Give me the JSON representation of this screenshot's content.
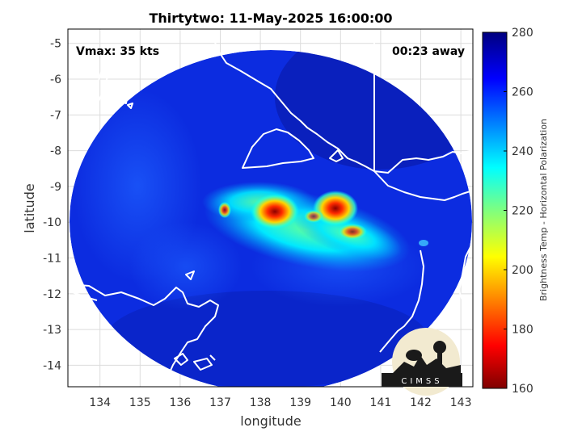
{
  "chart_data": {
    "type": "heatmap",
    "title": "Thirtytwo: 11-May-2025 16:00:00",
    "xlabel": "longitude",
    "ylabel": "latitude",
    "xlim": [
      133.2,
      143.3
    ],
    "ylim": [
      -14.6,
      -4.6
    ],
    "x_ticks": [
      134,
      135,
      136,
      137,
      138,
      139,
      140,
      141,
      142,
      143
    ],
    "y_ticks": [
      -5,
      -6,
      -7,
      -8,
      -9,
      -10,
      -11,
      -12,
      -13,
      -14
    ],
    "x_tick_labels": [
      "134",
      "135",
      "136",
      "137",
      "138",
      "139",
      "140",
      "141",
      "142",
      "143"
    ],
    "y_tick_labels": [
      "-5",
      "-6",
      "-7",
      "-8",
      "-9",
      "-10",
      "-11",
      "-12",
      "-13",
      "-14"
    ],
    "grid": true,
    "colorbar": {
      "label": "Brightness Temp - Horizontal Polarization",
      "range": [
        160,
        280
      ],
      "ticks": [
        280,
        260,
        240,
        220,
        200,
        180,
        160
      ],
      "tick_labels": [
        "280",
        "260",
        "240",
        "220",
        "200",
        "180",
        "160"
      ],
      "colormap": "jet"
    },
    "annotations": {
      "vmax": "Vmax: 35 kts",
      "time_offset": "00:23 away"
    },
    "swath": {
      "center_lon": 138.3,
      "center_lat": -9.75,
      "background_temp": 268
    },
    "cold_cores": [
      {
        "lon": 138.5,
        "lat": -9.85,
        "temp": 175
      },
      {
        "lon": 140.2,
        "lat": -9.7,
        "temp": 172
      },
      {
        "lon": 137.1,
        "lat": -9.8,
        "temp": 205
      }
    ]
  },
  "logo": {
    "text": "CIMSS"
  },
  "colors": {
    "coast": "#ffffff",
    "grid": "#dcdcdc",
    "frame": "#000000"
  }
}
